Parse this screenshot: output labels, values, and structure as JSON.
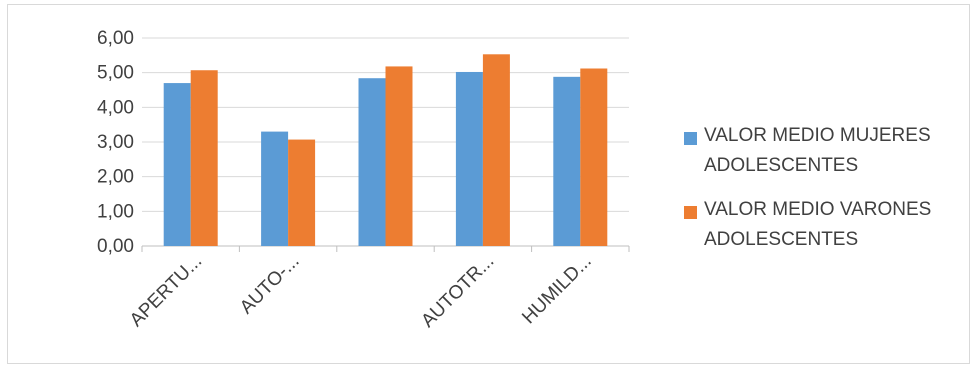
{
  "chart_data": {
    "type": "bar",
    "title": "",
    "xlabel": "",
    "ylabel": "",
    "categories": [
      "APERTU...",
      "AUTO-...",
      "",
      "AUTOTR...",
      "HUMILD..."
    ],
    "series": [
      {
        "name": "VALOR MEDIO MUJERES ADOLESCENTES",
        "color": "#5b9bd5",
        "values": [
          4.7,
          3.3,
          4.84,
          5.02,
          4.88
        ]
      },
      {
        "name": "VALOR MEDIO VARONES ADOLESCENTES",
        "color": "#ed7d31",
        "values": [
          5.07,
          3.07,
          5.18,
          5.53,
          5.12
        ]
      }
    ],
    "ylim": [
      0,
      6
    ],
    "yticks": [
      "0,00",
      "1,00",
      "2,00",
      "3,00",
      "4,00",
      "5,00",
      "6,00"
    ],
    "grid": true,
    "legend_position": "right"
  },
  "legend": {
    "items": [
      {
        "lines": [
          "VALOR MEDIO MUJERES",
          "ADOLESCENTES"
        ],
        "color": "#5b9bd5"
      },
      {
        "lines": [
          "VALOR MEDIO VARONES",
          "ADOLESCENTES"
        ],
        "color": "#ed7d31"
      }
    ]
  }
}
